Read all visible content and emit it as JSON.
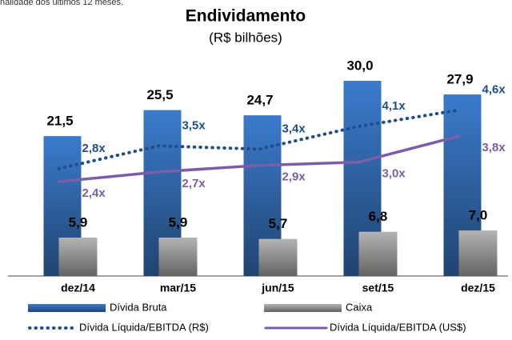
{
  "note": "nalidade dos últimos 12 meses.",
  "chart_data": {
    "type": "bar",
    "title": "Endividamento",
    "subtitle": "(R$ bilhões)",
    "categories": [
      "dez/14",
      "mar/15",
      "jun/15",
      "set/15",
      "dez/15"
    ],
    "ylim": [
      0,
      37.5
    ],
    "y2lim": [
      -0.5,
      7.0
    ],
    "series": [
      {
        "name": "Dívida Bruta",
        "type": "bar",
        "color": "#3b7bcc",
        "values": [
          21.5,
          25.5,
          24.7,
          30.0,
          27.9
        ],
        "value_labels": [
          "21,5",
          "25,5",
          "24,7",
          "30,0",
          "27,9"
        ]
      },
      {
        "name": "Caixa",
        "type": "bar",
        "color": "#b4b4b4",
        "values": [
          5.9,
          5.9,
          5.7,
          6.8,
          7.0
        ],
        "value_labels": [
          "5,9",
          "5,9",
          "5,7",
          "6,8",
          "7,0"
        ]
      },
      {
        "name": "Dívida Líquida/EBITDA (R$)",
        "type": "line",
        "style": "dotted",
        "axis": "y2",
        "color": "#1f4e8c",
        "values": [
          2.8,
          3.5,
          3.4,
          4.1,
          4.6
        ],
        "value_labels": [
          "2,8x",
          "3,5x",
          "3,4x",
          "4,1x",
          "4,6x"
        ]
      },
      {
        "name": "Dívida Líquida/EBITDA (US$)",
        "type": "line",
        "style": "solid",
        "axis": "y2",
        "color": "#7b5ea7",
        "values": [
          2.4,
          2.7,
          2.9,
          3.0,
          3.8
        ],
        "value_labels": [
          "2,4x",
          "2,7x",
          "2,9x",
          "3,0x",
          "3,8x"
        ]
      }
    ]
  }
}
